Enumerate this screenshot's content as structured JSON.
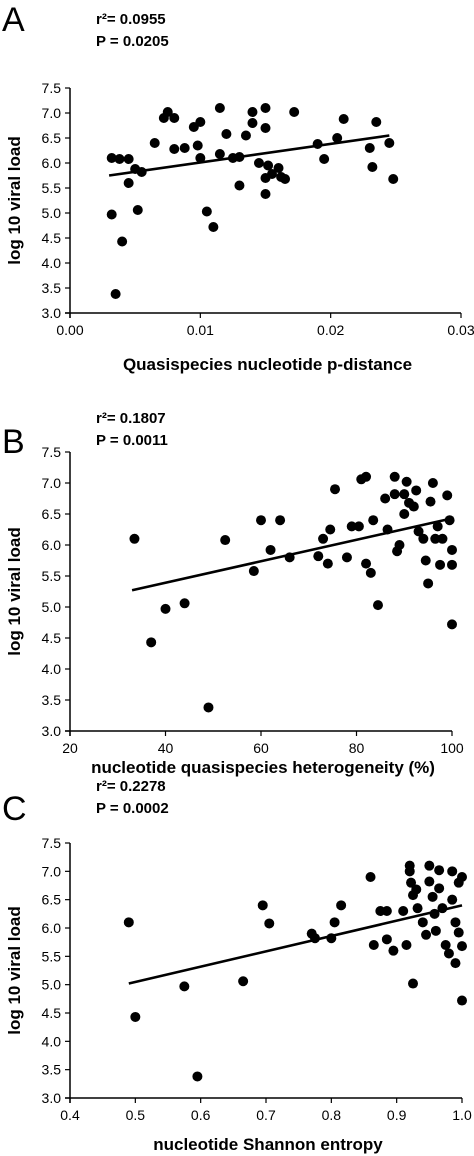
{
  "chart_data": [
    {
      "type": "scatter",
      "panel_label": "A",
      "stats": {
        "r2": "r²= 0.0955",
        "p": "P = 0.0205"
      },
      "xlabel": "Quasispecies nucleotide p-distance",
      "ylabel": "log 10 viral load",
      "xlim": [
        0,
        0.03
      ],
      "ylim": [
        3.0,
        7.5
      ],
      "xticks": [
        "0.00",
        "0.01",
        "0.02",
        "0.03"
      ],
      "xtick_values": [
        0,
        0.01,
        0.02,
        0.03
      ],
      "yticks": [
        "3.0",
        "3.5",
        "4.0",
        "4.5",
        "5.0",
        "5.5",
        "6.0",
        "6.5",
        "7.0",
        "7.5"
      ],
      "ytick_values": [
        3.0,
        3.5,
        4.0,
        4.5,
        5.0,
        5.5,
        6.0,
        6.5,
        7.0,
        7.5
      ],
      "trendline": [
        [
          0.003,
          5.75
        ],
        [
          0.0245,
          6.55
        ]
      ],
      "points": [
        [
          0.0035,
          3.38
        ],
        [
          0.0032,
          4.97
        ],
        [
          0.0032,
          6.1
        ],
        [
          0.004,
          4.43
        ],
        [
          0.0038,
          6.08
        ],
        [
          0.0045,
          5.6
        ],
        [
          0.0045,
          6.08
        ],
        [
          0.005,
          5.88
        ],
        [
          0.0055,
          5.82
        ],
        [
          0.0052,
          5.06
        ],
        [
          0.0065,
          6.4
        ],
        [
          0.0075,
          7.02
        ],
        [
          0.0072,
          6.9
        ],
        [
          0.008,
          6.9
        ],
        [
          0.008,
          6.28
        ],
        [
          0.0088,
          6.3
        ],
        [
          0.0095,
          6.72
        ],
        [
          0.01,
          6.82
        ],
        [
          0.0098,
          6.35
        ],
        [
          0.01,
          6.1
        ],
        [
          0.0105,
          5.03
        ],
        [
          0.011,
          4.72
        ],
        [
          0.0115,
          7.1
        ],
        [
          0.0115,
          6.18
        ],
        [
          0.012,
          6.58
        ],
        [
          0.0125,
          6.1
        ],
        [
          0.013,
          5.55
        ],
        [
          0.013,
          6.12
        ],
        [
          0.0135,
          6.55
        ],
        [
          0.014,
          7.02
        ],
        [
          0.014,
          6.8
        ],
        [
          0.0145,
          6.0
        ],
        [
          0.015,
          7.1
        ],
        [
          0.015,
          6.7
        ],
        [
          0.015,
          5.38
        ],
        [
          0.015,
          5.7
        ],
        [
          0.0152,
          5.95
        ],
        [
          0.0155,
          5.78
        ],
        [
          0.016,
          5.9
        ],
        [
          0.0162,
          5.72
        ],
        [
          0.0165,
          5.68
        ],
        [
          0.0172,
          7.02
        ],
        [
          0.019,
          6.38
        ],
        [
          0.0195,
          6.08
        ],
        [
          0.0205,
          6.5
        ],
        [
          0.021,
          6.88
        ],
        [
          0.023,
          6.3
        ],
        [
          0.0232,
          5.92
        ],
        [
          0.0235,
          6.82
        ],
        [
          0.0245,
          6.4
        ],
        [
          0.0248,
          5.68
        ]
      ]
    },
    {
      "type": "scatter",
      "panel_label": "B",
      "stats": {
        "r2": "r²= 0.1807",
        "p": "P = 0.0011"
      },
      "xlabel": "nucleotide quasispecies heterogeneity (%)",
      "ylabel": "log 10 viral load",
      "xlim": [
        20,
        100
      ],
      "ylim": [
        3.0,
        7.5
      ],
      "xticks": [
        "20",
        "40",
        "60",
        "80",
        "100"
      ],
      "xtick_values": [
        20,
        40,
        60,
        80,
        100
      ],
      "yticks": [
        "3.0",
        "3.5",
        "4.0",
        "4.5",
        "5.0",
        "5.5",
        "6.0",
        "6.5",
        "7.0",
        "7.5"
      ],
      "ytick_values": [
        3.0,
        3.5,
        4.0,
        4.5,
        5.0,
        5.5,
        6.0,
        6.5,
        7.0,
        7.5
      ],
      "trendline": [
        [
          33,
          5.27
        ],
        [
          100,
          6.43
        ]
      ],
      "points": [
        [
          33.5,
          6.1
        ],
        [
          37,
          4.43
        ],
        [
          40,
          4.97
        ],
        [
          44,
          5.06
        ],
        [
          49,
          3.38
        ],
        [
          52.5,
          6.08
        ],
        [
          58.5,
          5.58
        ],
        [
          60,
          6.4
        ],
        [
          62,
          5.92
        ],
        [
          64,
          6.4
        ],
        [
          66,
          5.8
        ],
        [
          72,
          5.82
        ],
        [
          73,
          6.1
        ],
        [
          74,
          5.7
        ],
        [
          74.5,
          6.25
        ],
        [
          75.5,
          6.9
        ],
        [
          78,
          5.8
        ],
        [
          79,
          6.3
        ],
        [
          80.5,
          6.3
        ],
        [
          81,
          7.06
        ],
        [
          82,
          7.1
        ],
        [
          82,
          5.7
        ],
        [
          83,
          5.55
        ],
        [
          83.5,
          6.4
        ],
        [
          84.5,
          5.03
        ],
        [
          86,
          6.75
        ],
        [
          86.5,
          6.25
        ],
        [
          88,
          7.1
        ],
        [
          88,
          6.82
        ],
        [
          88.5,
          5.9
        ],
        [
          89,
          6.0
        ],
        [
          90,
          6.82
        ],
        [
          90,
          6.5
        ],
        [
          90.5,
          7.02
        ],
        [
          91,
          6.68
        ],
        [
          92,
          6.62
        ],
        [
          92.5,
          6.88
        ],
        [
          93,
          6.22
        ],
        [
          94,
          6.1
        ],
        [
          94.5,
          5.75
        ],
        [
          95,
          5.38
        ],
        [
          95.5,
          6.7
        ],
        [
          96,
          7.0
        ],
        [
          96.5,
          6.1
        ],
        [
          97,
          6.3
        ],
        [
          97.5,
          5.68
        ],
        [
          98,
          6.1
        ],
        [
          99,
          6.8
        ],
        [
          99.5,
          6.4
        ],
        [
          100,
          5.92
        ],
        [
          100,
          5.68
        ],
        [
          100,
          4.72
        ]
      ]
    },
    {
      "type": "scatter",
      "panel_label": "C",
      "stats": {
        "r2": "r²= 0.2278",
        "p": "P = 0.0002"
      },
      "xlabel": "nucleotide Shannon entropy",
      "ylabel": "log 10 viral load",
      "xlim": [
        0.4,
        1.0
      ],
      "ylim": [
        3.0,
        7.5
      ],
      "xticks": [
        "0.4",
        "0.5",
        "0.6",
        "0.7",
        "0.8",
        "0.9",
        "1.0"
      ],
      "xtick_values": [
        0.4,
        0.5,
        0.6,
        0.7,
        0.8,
        0.9,
        1.0
      ],
      "yticks": [
        "3.0",
        "3.5",
        "4.0",
        "4.5",
        "5.0",
        "5.5",
        "6.0",
        "6.5",
        "7.0",
        "7.5"
      ],
      "ytick_values": [
        3.0,
        3.5,
        4.0,
        4.5,
        5.0,
        5.5,
        6.0,
        6.5,
        7.0,
        7.5
      ],
      "trendline": [
        [
          0.49,
          5.02
        ],
        [
          1.0,
          6.4
        ]
      ],
      "points": [
        [
          0.49,
          6.1
        ],
        [
          0.5,
          4.43
        ],
        [
          0.575,
          4.97
        ],
        [
          0.595,
          3.38
        ],
        [
          0.665,
          5.06
        ],
        [
          0.695,
          6.4
        ],
        [
          0.705,
          6.08
        ],
        [
          0.77,
          5.9
        ],
        [
          0.775,
          5.82
        ],
        [
          0.8,
          5.82
        ],
        [
          0.805,
          6.1
        ],
        [
          0.815,
          6.4
        ],
        [
          0.86,
          6.9
        ],
        [
          0.865,
          5.7
        ],
        [
          0.875,
          6.3
        ],
        [
          0.885,
          6.3
        ],
        [
          0.885,
          5.8
        ],
        [
          0.895,
          5.6
        ],
        [
          0.91,
          6.3
        ],
        [
          0.915,
          5.7
        ],
        [
          0.92,
          7.1
        ],
        [
          0.92,
          7.0
        ],
        [
          0.922,
          6.8
        ],
        [
          0.925,
          6.58
        ],
        [
          0.925,
          5.02
        ],
        [
          0.93,
          6.68
        ],
        [
          0.932,
          6.35
        ],
        [
          0.94,
          6.1
        ],
        [
          0.945,
          5.88
        ],
        [
          0.95,
          7.1
        ],
        [
          0.95,
          6.82
        ],
        [
          0.955,
          6.55
        ],
        [
          0.958,
          6.25
        ],
        [
          0.96,
          5.95
        ],
        [
          0.965,
          7.02
        ],
        [
          0.965,
          6.7
        ],
        [
          0.97,
          6.35
        ],
        [
          0.975,
          5.7
        ],
        [
          0.98,
          5.55
        ],
        [
          0.985,
          7.0
        ],
        [
          0.985,
          6.5
        ],
        [
          0.99,
          6.1
        ],
        [
          0.99,
          5.38
        ],
        [
          0.995,
          6.8
        ],
        [
          0.995,
          5.92
        ],
        [
          1.0,
          6.9
        ],
        [
          1.0,
          5.68
        ],
        [
          1.0,
          4.72
        ]
      ]
    }
  ]
}
